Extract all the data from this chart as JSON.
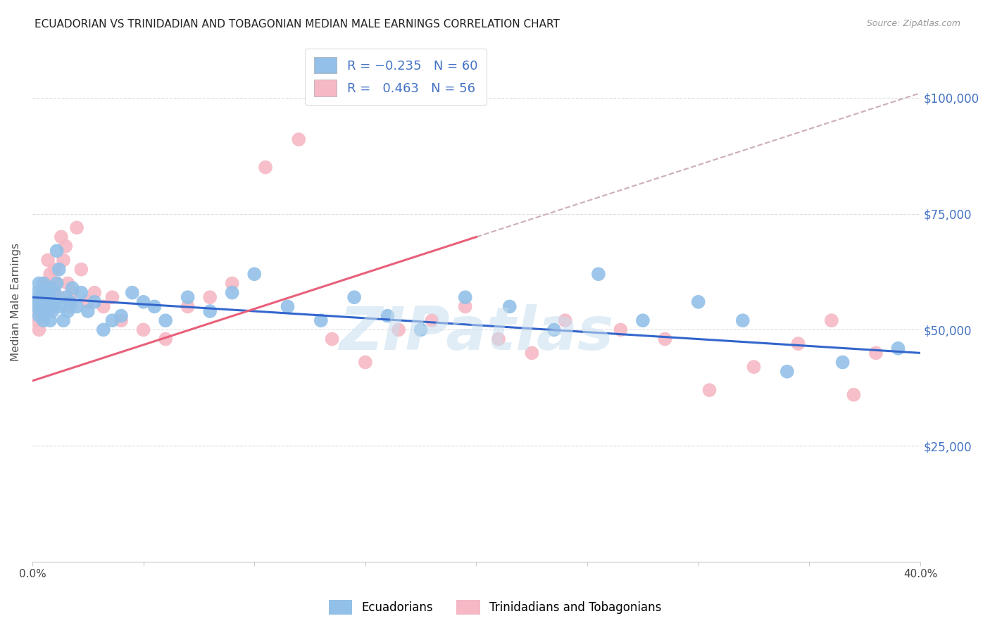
{
  "title": "ECUADORIAN VS TRINIDADIAN AND TOBAGONIAN MEDIAN MALE EARNINGS CORRELATION CHART",
  "source": "Source: ZipAtlas.com",
  "ylabel": "Median Male Earnings",
  "xlim": [
    0.0,
    0.4
  ],
  "ylim": [
    0,
    112000
  ],
  "yticks": [
    0,
    25000,
    50000,
    75000,
    100000
  ],
  "ytick_labels": [
    "",
    "$25,000",
    "$50,000",
    "$75,000",
    "$100,000"
  ],
  "xtick_positions": [
    0.0,
    0.05,
    0.1,
    0.15,
    0.2,
    0.25,
    0.3,
    0.35,
    0.4
  ],
  "xtick_labels": [
    "0.0%",
    "",
    "",
    "",
    "",
    "",
    "",
    "",
    "40.0%"
  ],
  "blue_line_color": "#3366cc",
  "pink_line_color": "#e8607a",
  "blue_scatter_color": "#92c0e8",
  "pink_scatter_color": "#f5b8c4",
  "dash_color": "#ccb0b8",
  "watermark": "ZIPatlas",
  "legend_label_blue": "Ecuadorians",
  "legend_label_pink": "Trinidadians and Tobagonians",
  "blue_line_x0": 0.0,
  "blue_line_y0": 57000,
  "blue_line_x1": 0.4,
  "blue_line_y1": 45000,
  "pink_line_x0": 0.0,
  "pink_line_y0": 39000,
  "pink_line_x1": 0.2,
  "pink_line_y1": 70000,
  "dash_line_x0": 0.2,
  "dash_line_y0": 70000,
  "dash_line_x1": 0.4,
  "dash_line_y1": 101000,
  "blue_points_x": [
    0.001,
    0.002,
    0.002,
    0.003,
    0.003,
    0.003,
    0.004,
    0.004,
    0.005,
    0.005,
    0.005,
    0.006,
    0.006,
    0.007,
    0.007,
    0.008,
    0.008,
    0.009,
    0.009,
    0.01,
    0.01,
    0.011,
    0.011,
    0.012,
    0.013,
    0.014,
    0.015,
    0.016,
    0.017,
    0.018,
    0.02,
    0.022,
    0.025,
    0.028,
    0.032,
    0.036,
    0.04,
    0.045,
    0.05,
    0.055,
    0.06,
    0.07,
    0.08,
    0.09,
    0.1,
    0.115,
    0.13,
    0.145,
    0.16,
    0.175,
    0.195,
    0.215,
    0.235,
    0.255,
    0.275,
    0.3,
    0.32,
    0.34,
    0.365,
    0.39
  ],
  "blue_points_y": [
    56000,
    55000,
    58000,
    53000,
    57000,
    60000,
    54000,
    58000,
    56000,
    52000,
    60000,
    55000,
    58000,
    57000,
    54000,
    59000,
    52000,
    56000,
    54000,
    58000,
    55000,
    67000,
    60000,
    63000,
    55000,
    52000,
    57000,
    54000,
    56000,
    59000,
    55000,
    58000,
    54000,
    56000,
    50000,
    52000,
    53000,
    58000,
    56000,
    55000,
    52000,
    57000,
    54000,
    58000,
    62000,
    55000,
    52000,
    57000,
    53000,
    50000,
    57000,
    55000,
    50000,
    62000,
    52000,
    56000,
    52000,
    41000,
    43000,
    46000
  ],
  "pink_points_x": [
    0.001,
    0.002,
    0.002,
    0.003,
    0.003,
    0.004,
    0.004,
    0.005,
    0.005,
    0.006,
    0.006,
    0.007,
    0.007,
    0.008,
    0.008,
    0.009,
    0.01,
    0.01,
    0.011,
    0.012,
    0.013,
    0.014,
    0.015,
    0.016,
    0.017,
    0.018,
    0.02,
    0.022,
    0.025,
    0.028,
    0.032,
    0.036,
    0.04,
    0.05,
    0.06,
    0.07,
    0.08,
    0.09,
    0.105,
    0.12,
    0.135,
    0.15,
    0.165,
    0.18,
    0.195,
    0.21,
    0.225,
    0.24,
    0.265,
    0.285,
    0.305,
    0.325,
    0.345,
    0.36,
    0.37,
    0.38
  ],
  "pink_points_y": [
    54000,
    52000,
    55000,
    56000,
    50000,
    57000,
    53000,
    58000,
    54000,
    60000,
    55000,
    65000,
    58000,
    62000,
    57000,
    55000,
    63000,
    58000,
    60000,
    57000,
    70000,
    65000,
    68000,
    60000,
    55000,
    58000,
    72000,
    63000,
    56000,
    58000,
    55000,
    57000,
    52000,
    50000,
    48000,
    55000,
    57000,
    60000,
    85000,
    91000,
    48000,
    43000,
    50000,
    52000,
    55000,
    48000,
    45000,
    52000,
    50000,
    48000,
    37000,
    42000,
    47000,
    52000,
    36000,
    45000
  ]
}
